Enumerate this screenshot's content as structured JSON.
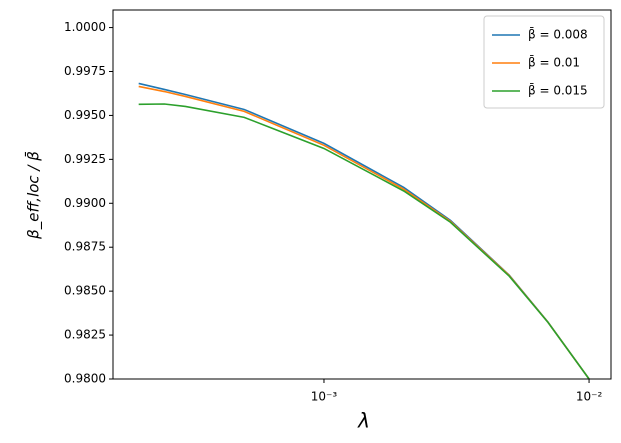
{
  "chart_data": {
    "type": "line",
    "xlabel": "λ",
    "ylabel": "β_eff,loc / β̄",
    "xscale": "log",
    "x": [
      0.0002,
      0.00025,
      0.0003,
      0.0005,
      0.001,
      0.002,
      0.003,
      0.005,
      0.007,
      0.01
    ],
    "series": [
      {
        "name": "β̄ = 0.008",
        "color": "#1f77b4",
        "values": [
          0.99682,
          0.99648,
          0.99619,
          0.99534,
          0.99341,
          0.9909,
          0.98903,
          0.98591,
          0.98324,
          0.98
        ]
      },
      {
        "name": "β̄ = 0.01",
        "color": "#ff7f0e",
        "values": [
          0.99665,
          0.99636,
          0.99608,
          0.99523,
          0.9933,
          0.9908,
          0.98897,
          0.98589,
          0.98323,
          0.98
        ]
      },
      {
        "name": "β̄ = 0.015",
        "color": "#2ca02c",
        "values": [
          0.99563,
          0.99565,
          0.99551,
          0.99489,
          0.99312,
          0.9907,
          0.98892,
          0.98585,
          0.98322,
          0.98
        ]
      }
    ],
    "xlim": [
      0.00016,
      0.0121
    ],
    "xticks": [
      {
        "value": 0.001,
        "label": "10⁻³"
      },
      {
        "value": 0.01,
        "label": "10⁻²"
      }
    ],
    "ylim": [
      0.98,
      1.001
    ],
    "yticks": [
      {
        "value": 0.98,
        "label": "0.9800"
      },
      {
        "value": 0.9825,
        "label": "0.9825"
      },
      {
        "value": 0.985,
        "label": "0.9850"
      },
      {
        "value": 0.9875,
        "label": "0.9875"
      },
      {
        "value": 0.99,
        "label": "0.9900"
      },
      {
        "value": 0.9925,
        "label": "0.9925"
      },
      {
        "value": 0.995,
        "label": "0.9950"
      },
      {
        "value": 0.9975,
        "label": "0.9975"
      },
      {
        "value": 1.0,
        "label": "1.0000"
      }
    ],
    "legend": "upper right"
  }
}
